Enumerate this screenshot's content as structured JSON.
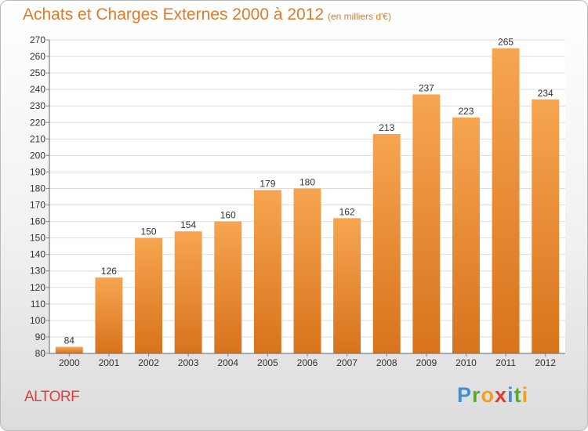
{
  "header": {
    "title": "Achats et Charges Externes 2000 à 2012",
    "unit_note": "(en milliers d'€)"
  },
  "town": "ALTORF",
  "brand": {
    "letters": [
      "P",
      "r",
      "o",
      "x",
      "i",
      "t",
      "i"
    ],
    "colors": [
      "#3f8fd8",
      "#5aa830",
      "#f0a020",
      "#e03b2f",
      "#3f8fd8",
      "#5aa830",
      "#f0a020"
    ]
  },
  "colors": {
    "bar_top": "#f7a550",
    "bar_bottom": "#d8731c",
    "title": "#e07a2a",
    "town": "#e63c3c"
  },
  "chart_data": {
    "type": "bar",
    "title": "Achats et Charges Externes 2000 à 2012",
    "subtitle": "(en milliers d'€)",
    "xlabel": "",
    "ylabel": "",
    "categories": [
      "2000",
      "2001",
      "2002",
      "2003",
      "2004",
      "2005",
      "2006",
      "2007",
      "2008",
      "2009",
      "2010",
      "2011",
      "2012"
    ],
    "values": [
      84,
      126,
      150,
      154,
      160,
      179,
      180,
      162,
      213,
      237,
      223,
      265,
      234
    ],
    "ylim": [
      80,
      270
    ],
    "ytick_step": 10,
    "grid": true,
    "legend": "none"
  }
}
